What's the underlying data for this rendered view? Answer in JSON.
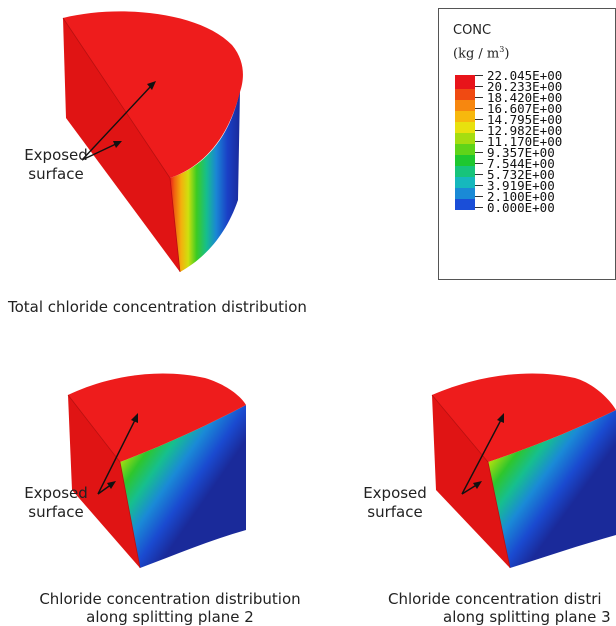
{
  "legend": {
    "title": "CONC",
    "unit": "(kg / m",
    "unit_sup": "3",
    "unit_close": ")",
    "values": [
      "22.045E+00",
      "20.233E+00",
      "18.420E+00",
      "16.607E+00",
      "14.795E+00",
      "12.982E+00",
      "11.170E+00",
      "9.357E+00",
      "7.544E+00",
      "5.732E+00",
      "3.919E+00",
      "2.100E+00",
      "0.000E+00"
    ],
    "colors": [
      "#e8141a",
      "#f04a12",
      "#f7870f",
      "#f7b80d",
      "#e8e10e",
      "#a5dd10",
      "#5fd419",
      "#1ec82f",
      "#17c47b",
      "#16b8bd",
      "#1a8ad6",
      "#1a4ed8",
      "#1a1ab8"
    ]
  },
  "panels": {
    "top": {
      "label": "Exposed\nsurface",
      "caption": "Total chloride concentration distribution"
    },
    "bottom_left": {
      "label": "Exposed\nsurface",
      "caption_line1": "Chloride concentration distribution",
      "caption_line2": "along splitting plane 2"
    },
    "bottom_right": {
      "label": "Exposed\nsurface",
      "caption_line1": "Chloride concentration distri",
      "caption_line2": "along splitting plane 3"
    }
  },
  "colors": {
    "surface_red": "#ea1a1a",
    "dark_blue": "#1a2a9a"
  }
}
